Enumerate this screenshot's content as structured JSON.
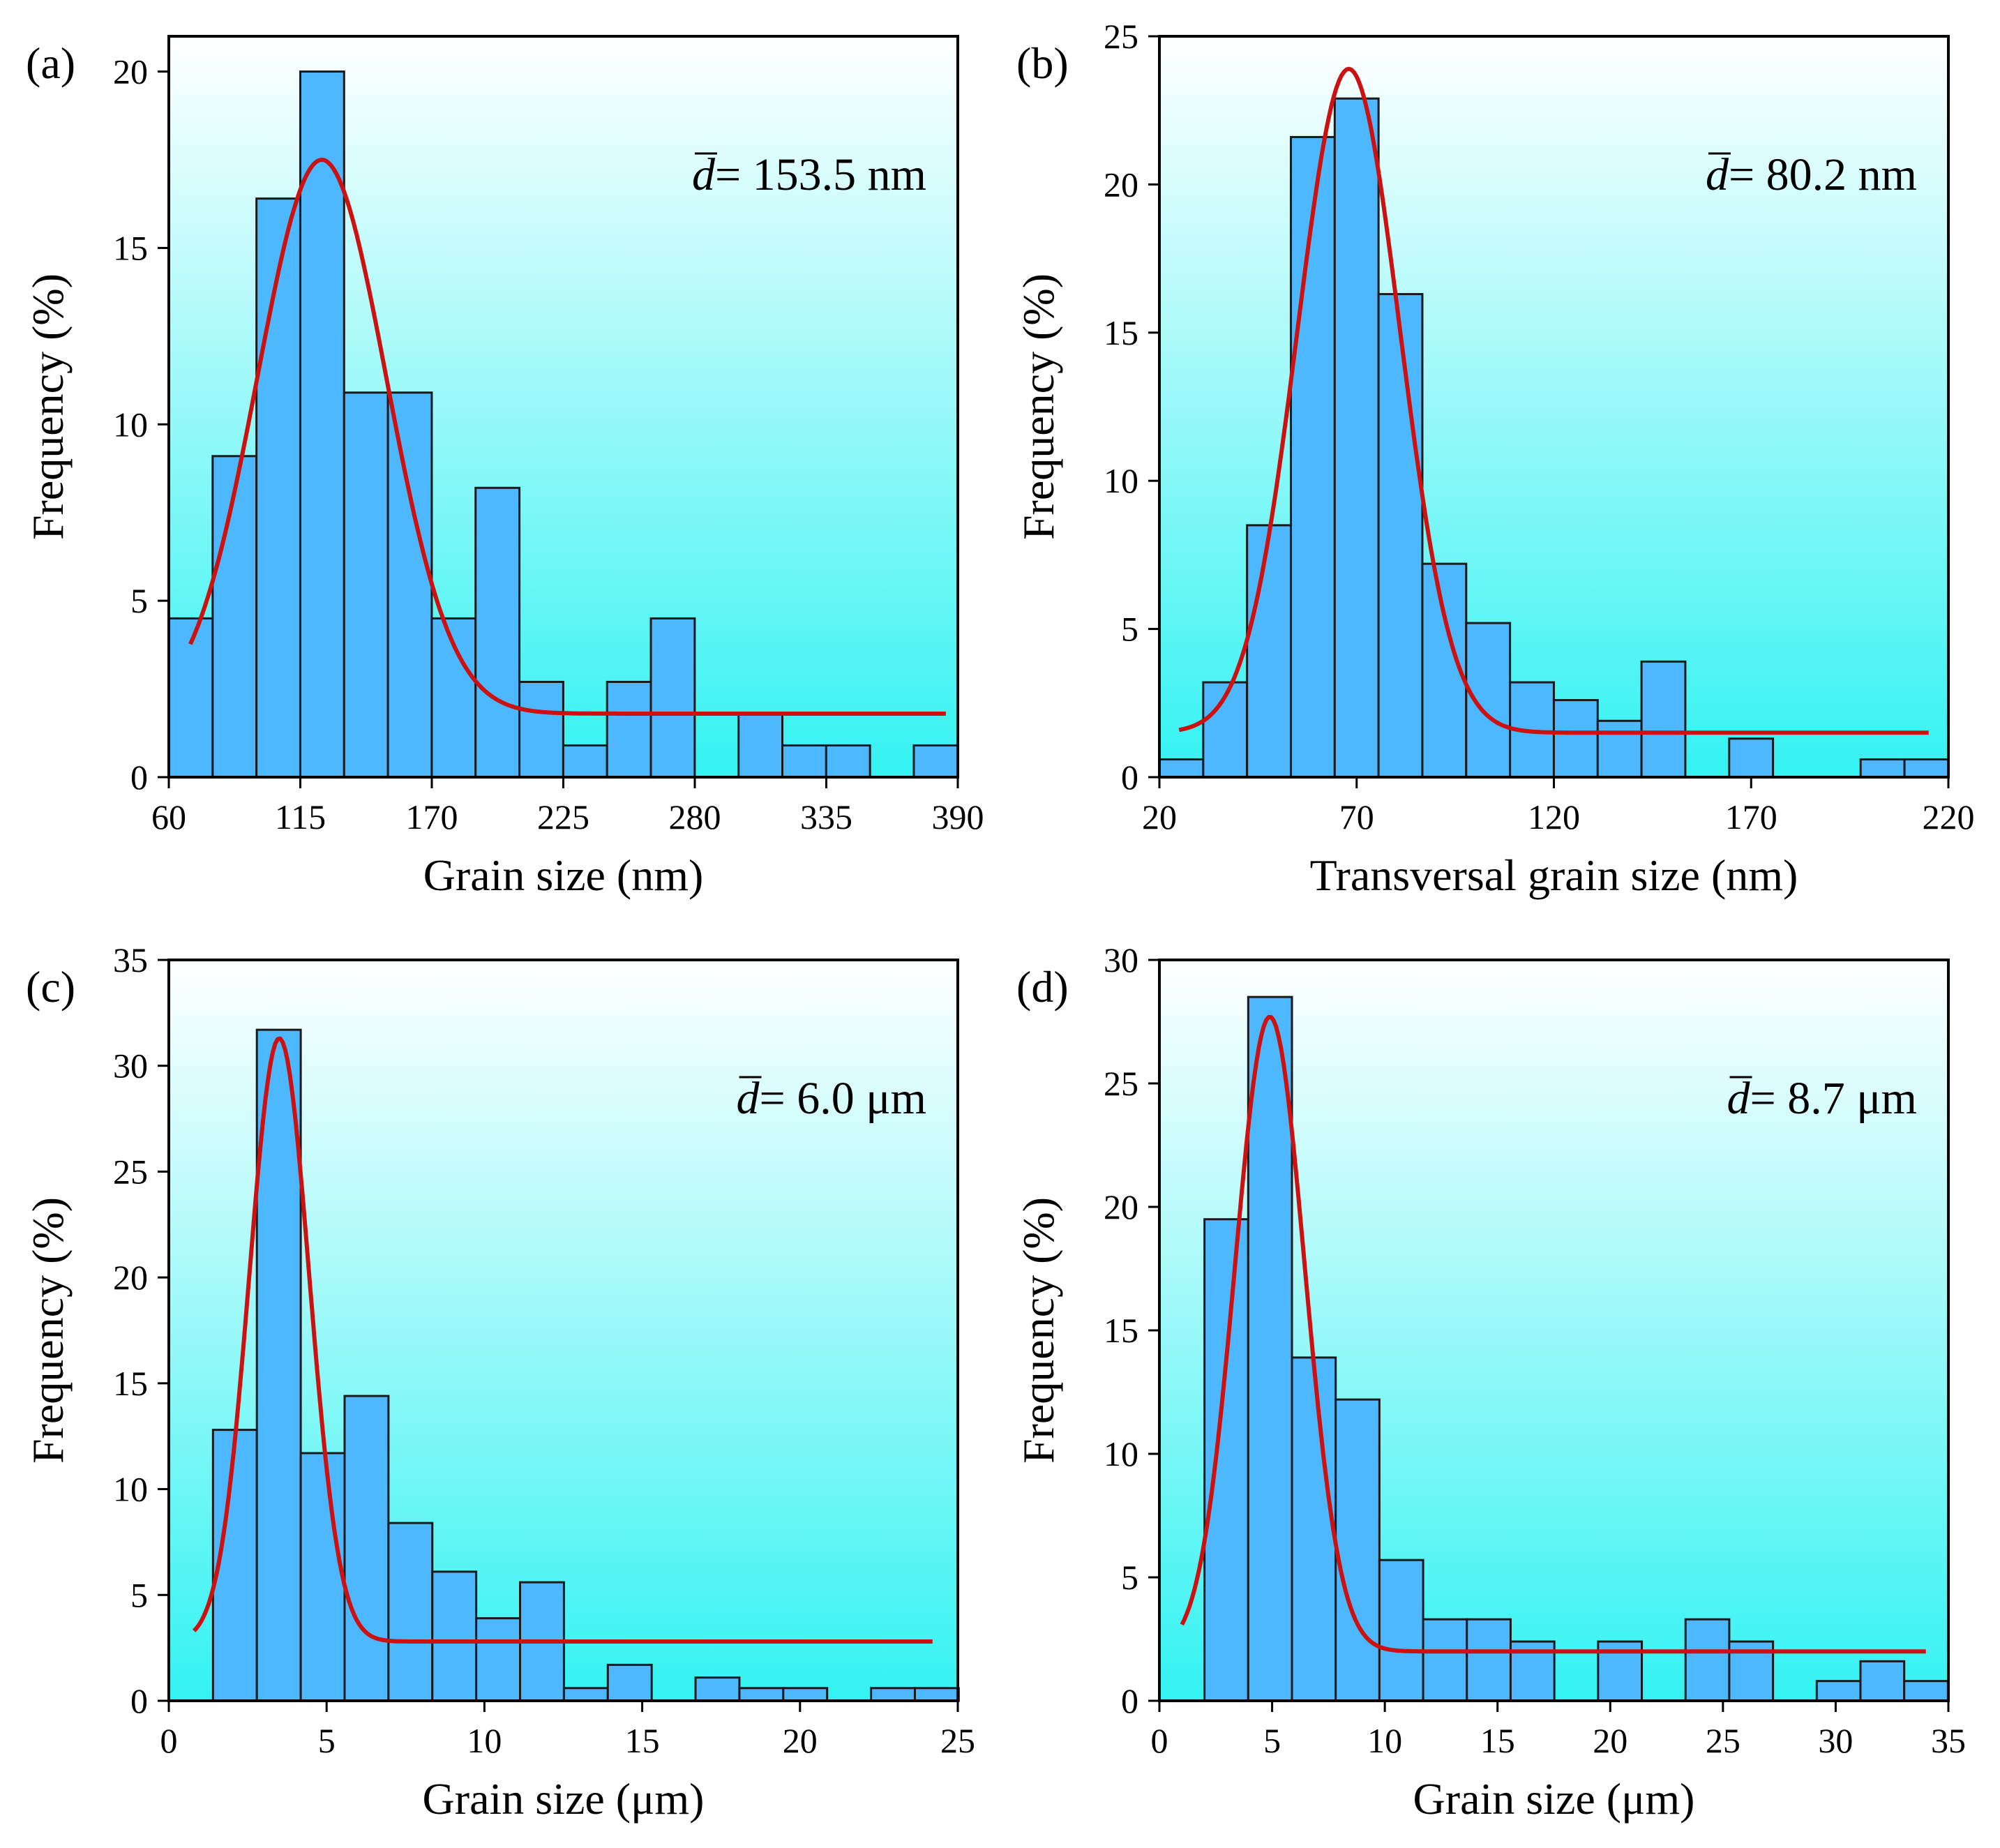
{
  "colors": {
    "bar_fill": "#4db8ff",
    "bar_stroke": "#1a1a1a",
    "fit_line": "#cc1111",
    "bg_top": "#ffffff",
    "bg_bottom": "#33f2f2"
  },
  "chart_data": [
    {
      "id": "a",
      "type": "bar",
      "panel_label": "(a)",
      "mean_symbol": "d",
      "mean_text": "= 153.5 nm",
      "xlabel": "Grain size (nm)",
      "ylabel": "Frequency (%)",
      "xlim": [
        60,
        390
      ],
      "ylim": [
        0,
        21
      ],
      "xticks": [
        60,
        115,
        170,
        225,
        280,
        335,
        390
      ],
      "yticks": [
        0,
        5,
        10,
        15,
        20
      ],
      "bin_start": 60,
      "bin_width": 18.33,
      "values": [
        4.5,
        9.1,
        16.4,
        20.0,
        10.9,
        10.9,
        4.5,
        8.2,
        2.7,
        0.9,
        2.7,
        4.5,
        0.0,
        1.8,
        0.9,
        0.9,
        0.0,
        0.9
      ],
      "fit": {
        "type": "gaussian+baseline",
        "baseline": 1.8,
        "amplitude": 15.7,
        "center": 124,
        "sigma": 27,
        "x_start": 69,
        "x_end": 385
      },
      "grid": false
    },
    {
      "id": "b",
      "type": "bar",
      "panel_label": "(b)",
      "mean_symbol": "d",
      "mean_text": "= 80.2 nm",
      "xlabel": "Transversal grain size (nm)",
      "ylabel": "Frequency (%)",
      "xlim": [
        20,
        220
      ],
      "ylim": [
        0,
        25
      ],
      "xticks": [
        20,
        70,
        120,
        170,
        220
      ],
      "yticks": [
        0,
        5,
        10,
        15,
        20,
        25
      ],
      "bin_start": 20,
      "bin_width": 11.11,
      "values": [
        0.6,
        3.2,
        8.5,
        21.6,
        22.9,
        16.3,
        7.2,
        5.2,
        3.2,
        2.6,
        1.9,
        3.9,
        0.0,
        1.3,
        0.0,
        0.0,
        0.6,
        0.6
      ],
      "fit": {
        "type": "gaussian+baseline",
        "baseline": 1.5,
        "amplitude": 22.4,
        "center": 68,
        "sigma": 13,
        "x_start": 25,
        "x_end": 215
      },
      "grid": false
    },
    {
      "id": "c",
      "type": "bar",
      "panel_label": "(c)",
      "mean_symbol": "d",
      "mean_text": "= 6.0 μm",
      "xlabel": "Grain size (μm)",
      "ylabel": "Frequency (%)",
      "xlim": [
        0,
        25
      ],
      "ylim": [
        0,
        35
      ],
      "xticks": [
        0,
        5,
        10,
        15,
        20,
        25
      ],
      "yticks": [
        0,
        5,
        10,
        15,
        20,
        25,
        30,
        35
      ],
      "bin_start": 1.4,
      "bin_width": 1.39,
      "values": [
        12.8,
        31.7,
        11.7,
        14.4,
        8.4,
        6.1,
        3.9,
        5.6,
        0.6,
        1.7,
        0.0,
        1.1,
        0.6,
        0.6,
        0.0,
        0.6,
        0.6
      ],
      "fit": {
        "type": "gaussian+baseline",
        "baseline": 2.8,
        "amplitude": 28.5,
        "center": 3.5,
        "sigma": 0.95,
        "x_start": 0.8,
        "x_end": 24.2
      },
      "grid": false
    },
    {
      "id": "d",
      "type": "bar",
      "panel_label": "(d)",
      "mean_symbol": "d",
      "mean_text": "= 8.7 μm",
      "xlabel": "Grain size (μm)",
      "ylabel": "Frequency (%)",
      "xlim": [
        0,
        35
      ],
      "ylim": [
        0,
        30
      ],
      "xticks": [
        0,
        5,
        10,
        15,
        20,
        25,
        30,
        35
      ],
      "yticks": [
        0,
        5,
        10,
        15,
        20,
        25,
        30
      ],
      "bin_start": 2.0,
      "bin_width": 1.94,
      "values": [
        19.5,
        28.5,
        13.9,
        12.2,
        5.7,
        3.3,
        3.3,
        2.4,
        0.0,
        2.4,
        0.0,
        3.3,
        2.4,
        0.0,
        0.8,
        1.6,
        0.8
      ],
      "fit": {
        "type": "gaussian+baseline",
        "baseline": 2.0,
        "amplitude": 25.7,
        "center": 4.9,
        "sigma": 1.55,
        "x_start": 1.0,
        "x_end": 34
      },
      "grid": false
    }
  ]
}
